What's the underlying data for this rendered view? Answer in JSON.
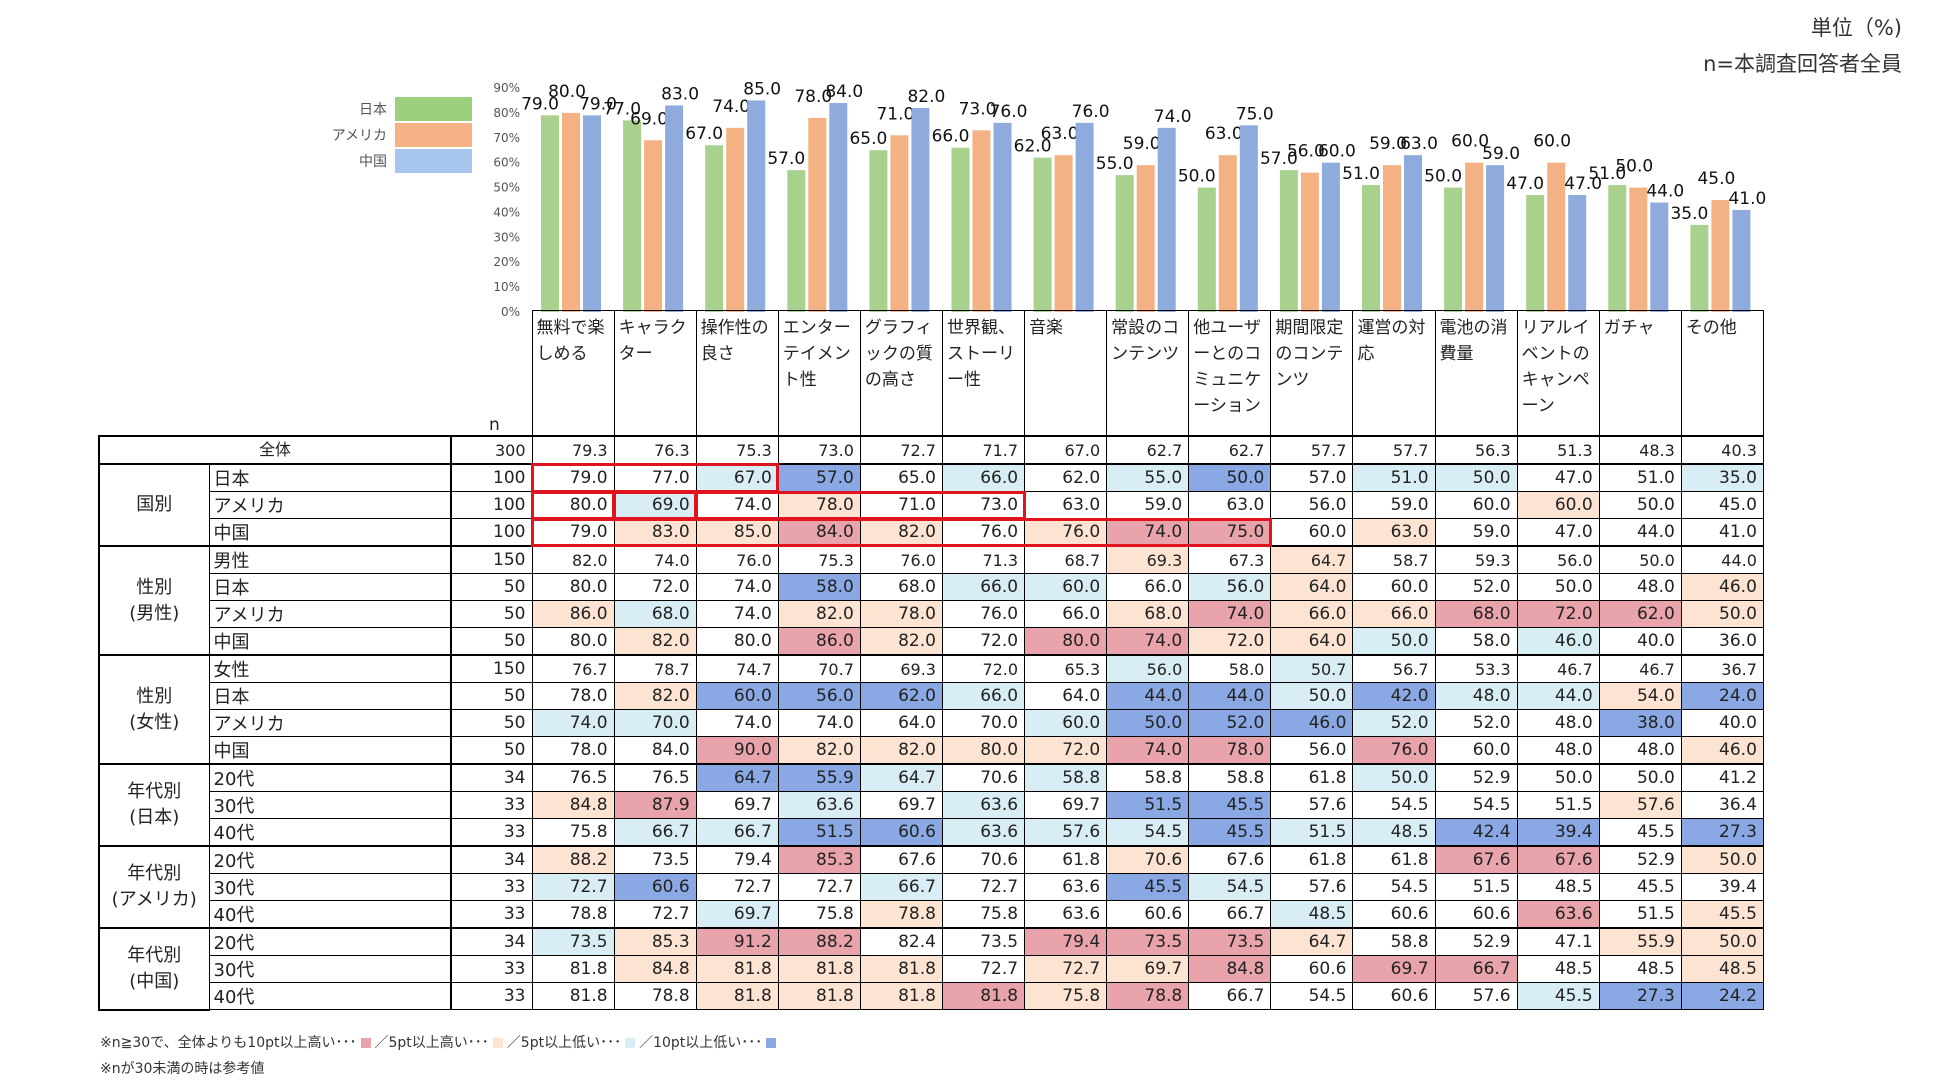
{
  "unit_label": "単位（%)",
  "n_label": "n=本調査回答者全員",
  "legend": [
    {
      "name": "日本",
      "color": "#9cd07e"
    },
    {
      "name": "アメリカ",
      "color": "#f4b183"
    },
    {
      "name": "中国",
      "color": "#8fb0e8"
    }
  ],
  "chart_data": {
    "type": "bar",
    "ylim": [
      0,
      90
    ],
    "yticks": [
      "0%",
      "10%",
      "20%",
      "30%",
      "40%",
      "50%",
      "60%",
      "70%",
      "80%",
      "90%"
    ],
    "categories": [
      "無料で楽しめる",
      "キャラクター",
      "操作性の良さ",
      "エンターテイメント性",
      "グラフィックの質の高さ",
      "世界観、ストーリー性",
      "音楽",
      "常設のコンテンツ",
      "他ユーザーとのコミュニケーション",
      "期間限定のコンテンツ",
      "運営の対応",
      "電池の消費量",
      "リアルイベントのキャンペーン",
      "ガチャ",
      "その他"
    ],
    "series": [
      {
        "name": "日本",
        "values": [
          79.0,
          77.0,
          67.0,
          57.0,
          65.0,
          66.0,
          62.0,
          55.0,
          50.0,
          57.0,
          51.0,
          50.0,
          47.0,
          51.0,
          35.0
        ]
      },
      {
        "name": "アメリカ",
        "values": [
          80.0,
          69.0,
          74.0,
          78.0,
          71.0,
          73.0,
          63.0,
          59.0,
          63.0,
          56.0,
          59.0,
          60.0,
          60.0,
          50.0,
          45.0
        ]
      },
      {
        "name": "中国",
        "values": [
          79.0,
          83.0,
          85.0,
          84.0,
          82.0,
          76.0,
          76.0,
          74.0,
          75.0,
          60.0,
          63.0,
          59.0,
          47.0,
          44.0,
          41.0
        ]
      }
    ]
  },
  "table": {
    "n_header": "n",
    "columns": [
      "無料で楽しめる",
      "キャラクター",
      "操作性の良さ",
      "エンターテイメント性",
      "グラフィックの質の高さ",
      "世界観、ストーリー性",
      "音楽",
      "常設のコンテンツ",
      "他ユーザーとのコミュニケーション",
      "期間限定のコンテンツ",
      "運営の対応",
      "電池の消費量",
      "リアルイベントのキャンペーン",
      "ガチャ",
      "その他"
    ],
    "total": {
      "label": "全体",
      "n": "300",
      "values": [
        "79.3",
        "76.3",
        "75.3",
        "73.0",
        "72.7",
        "71.7",
        "67.0",
        "62.7",
        "62.7",
        "57.7",
        "57.7",
        "56.3",
        "51.3",
        "48.3",
        "40.3"
      ]
    },
    "groups": [
      {
        "label": "国別",
        "rows": [
          {
            "label": "日本",
            "n": "100",
            "values": [
              "79.0",
              "77.0",
              "67.0",
              "57.0",
              "65.0",
              "66.0",
              "62.0",
              "55.0",
              "50.0",
              "57.0",
              "51.0",
              "50.0",
              "47.0",
              "51.0",
              "35.0"
            ],
            "colors": [
              "",
              "",
              "lb",
              "b",
              "",
              "lb",
              "",
              "lb",
              "b",
              "",
              "lb",
              "lb",
              "",
              "",
              "lb"
            ]
          },
          {
            "label": "アメリカ",
            "n": "100",
            "values": [
              "80.0",
              "69.0",
              "74.0",
              "78.0",
              "71.0",
              "73.0",
              "63.0",
              "59.0",
              "63.0",
              "56.0",
              "59.0",
              "60.0",
              "60.0",
              "50.0",
              "45.0"
            ],
            "colors": [
              "",
              "lb",
              "",
              "lp",
              "",
              "",
              "",
              "",
              "",
              "",
              "",
              "",
              "lp",
              "",
              ""
            ]
          },
          {
            "label": "中国",
            "n": "100",
            "values": [
              "79.0",
              "83.0",
              "85.0",
              "84.0",
              "82.0",
              "76.0",
              "76.0",
              "74.0",
              "75.0",
              "60.0",
              "63.0",
              "59.0",
              "47.0",
              "44.0",
              "41.0"
            ],
            "colors": [
              "",
              "lp",
              "lp",
              "p",
              "lp",
              "",
              "lp",
              "p",
              "p",
              "",
              "lp",
              "",
              "",
              "",
              ""
            ]
          }
        ]
      },
      {
        "label": "性別\n(男性)",
        "rows": [
          {
            "label": "男性",
            "n": "150",
            "values": [
              "82.0",
              "74.0",
              "76.0",
              "75.3",
              "76.0",
              "71.3",
              "68.7",
              "69.3",
              "67.3",
              "64.7",
              "58.7",
              "59.3",
              "56.0",
              "50.0",
              "44.0"
            ],
            "colors": [
              "",
              "",
              "",
              "",
              "",
              "",
              "",
              "lp",
              "",
              "lp",
              "",
              "",
              "",
              "",
              ""
            ],
            "small": true
          },
          {
            "label": "日本",
            "n": "50",
            "values": [
              "80.0",
              "72.0",
              "74.0",
              "58.0",
              "68.0",
              "66.0",
              "60.0",
              "66.0",
              "56.0",
              "64.0",
              "60.0",
              "52.0",
              "50.0",
              "48.0",
              "46.0"
            ],
            "colors": [
              "",
              "",
              "",
              "b",
              "",
              "lb",
              "lb",
              "",
              "lb",
              "lp",
              "",
              "",
              "",
              "",
              "lp"
            ]
          },
          {
            "label": "アメリカ",
            "n": "50",
            "values": [
              "86.0",
              "68.0",
              "74.0",
              "82.0",
              "78.0",
              "76.0",
              "66.0",
              "68.0",
              "74.0",
              "66.0",
              "66.0",
              "68.0",
              "72.0",
              "62.0",
              "50.0"
            ],
            "colors": [
              "lp",
              "lb",
              "",
              "lp",
              "lp",
              "",
              "",
              "lp",
              "p",
              "lp",
              "lp",
              "p",
              "p",
              "p",
              "lp"
            ]
          },
          {
            "label": "中国",
            "n": "50",
            "values": [
              "80.0",
              "82.0",
              "80.0",
              "86.0",
              "82.0",
              "72.0",
              "80.0",
              "74.0",
              "72.0",
              "64.0",
              "50.0",
              "58.0",
              "46.0",
              "40.0",
              "36.0"
            ],
            "colors": [
              "",
              "lp",
              "",
              "p",
              "lp",
              "",
              "p",
              "p",
              "lp",
              "lp",
              "lb",
              "",
              "lb",
              "",
              ""
            ]
          }
        ]
      },
      {
        "label": "性別\n(女性)",
        "rows": [
          {
            "label": "女性",
            "n": "150",
            "values": [
              "76.7",
              "78.7",
              "74.7",
              "70.7",
              "69.3",
              "72.0",
              "65.3",
              "56.0",
              "58.0",
              "50.7",
              "56.7",
              "53.3",
              "46.7",
              "46.7",
              "36.7"
            ],
            "colors": [
              "",
              "",
              "",
              "",
              "",
              "",
              "",
              "lb",
              "",
              "lb",
              "",
              "",
              "",
              "",
              ""
            ],
            "small": true
          },
          {
            "label": "日本",
            "n": "50",
            "values": [
              "78.0",
              "82.0",
              "60.0",
              "56.0",
              "62.0",
              "66.0",
              "64.0",
              "44.0",
              "44.0",
              "50.0",
              "42.0",
              "48.0",
              "44.0",
              "54.0",
              "24.0"
            ],
            "colors": [
              "",
              "lp",
              "b",
              "b",
              "b",
              "lb",
              "",
              "b",
              "b",
              "lb",
              "b",
              "lb",
              "lb",
              "lp",
              "b"
            ]
          },
          {
            "label": "アメリカ",
            "n": "50",
            "values": [
              "74.0",
              "70.0",
              "74.0",
              "74.0",
              "64.0",
              "70.0",
              "60.0",
              "50.0",
              "52.0",
              "46.0",
              "52.0",
              "52.0",
              "48.0",
              "38.0",
              "40.0"
            ],
            "colors": [
              "lb",
              "lb",
              "",
              "",
              "",
              "",
              "lb",
              "b",
              "b",
              "b",
              "lb",
              "",
              "",
              "b",
              ""
            ]
          },
          {
            "label": "中国",
            "n": "50",
            "values": [
              "78.0",
              "84.0",
              "90.0",
              "82.0",
              "82.0",
              "80.0",
              "72.0",
              "74.0",
              "78.0",
              "56.0",
              "76.0",
              "60.0",
              "48.0",
              "48.0",
              "46.0"
            ],
            "colors": [
              "",
              "",
              "p",
              "lp",
              "lp",
              "lp",
              "lp",
              "p",
              "p",
              "",
              "p",
              "",
              "",
              "",
              "lp"
            ]
          }
        ]
      },
      {
        "label": "年代別\n(日本)",
        "rows": [
          {
            "label": "20代",
            "n": "34",
            "values": [
              "76.5",
              "76.5",
              "64.7",
              "55.9",
              "64.7",
              "70.6",
              "58.8",
              "58.8",
              "58.8",
              "61.8",
              "50.0",
              "52.9",
              "50.0",
              "50.0",
              "41.2"
            ],
            "colors": [
              "",
              "",
              "b",
              "b",
              "lb",
              "",
              "lb",
              "",
              "",
              "",
              "lb",
              "",
              "",
              "",
              ""
            ]
          },
          {
            "label": "30代",
            "n": "33",
            "values": [
              "84.8",
              "87.9",
              "69.7",
              "63.6",
              "69.7",
              "63.6",
              "69.7",
              "51.5",
              "45.5",
              "57.6",
              "54.5",
              "54.5",
              "51.5",
              "57.6",
              "36.4"
            ],
            "colors": [
              "lp",
              "p",
              "",
              "lb",
              "",
              "lb",
              "",
              "b",
              "b",
              "",
              "",
              "",
              "",
              "lp",
              ""
            ]
          },
          {
            "label": "40代",
            "n": "33",
            "values": [
              "75.8",
              "66.7",
              "66.7",
              "51.5",
              "60.6",
              "63.6",
              "57.6",
              "54.5",
              "45.5",
              "51.5",
              "48.5",
              "42.4",
              "39.4",
              "45.5",
              "27.3"
            ],
            "colors": [
              "",
              "lb",
              "lb",
              "b",
              "b",
              "lb",
              "lb",
              "lb",
              "b",
              "lb",
              "lb",
              "b",
              "b",
              "",
              "b"
            ]
          }
        ]
      },
      {
        "label": "年代別\n(アメリカ)",
        "rows": [
          {
            "label": "20代",
            "n": "34",
            "values": [
              "88.2",
              "73.5",
              "79.4",
              "85.3",
              "67.6",
              "70.6",
              "61.8",
              "70.6",
              "67.6",
              "61.8",
              "61.8",
              "67.6",
              "67.6",
              "52.9",
              "50.0"
            ],
            "colors": [
              "lp",
              "",
              "",
              "p",
              "",
              "",
              "",
              "lp",
              "",
              "",
              "",
              "p",
              "p",
              "",
              "lp"
            ]
          },
          {
            "label": "30代",
            "n": "33",
            "values": [
              "72.7",
              "60.6",
              "72.7",
              "72.7",
              "66.7",
              "72.7",
              "63.6",
              "45.5",
              "54.5",
              "57.6",
              "54.5",
              "51.5",
              "48.5",
              "45.5",
              "39.4"
            ],
            "colors": [
              "lb",
              "b",
              "",
              "",
              "lb",
              "",
              "",
              "b",
              "lb",
              "",
              "",
              "",
              "",
              "",
              ""
            ]
          },
          {
            "label": "40代",
            "n": "33",
            "values": [
              "78.8",
              "72.7",
              "69.7",
              "75.8",
              "78.8",
              "75.8",
              "63.6",
              "60.6",
              "66.7",
              "48.5",
              "60.6",
              "60.6",
              "63.6",
              "51.5",
              "45.5"
            ],
            "colors": [
              "",
              "",
              "lb",
              "",
              "lp",
              "",
              "",
              "",
              "",
              "lb",
              "",
              "",
              "p",
              "",
              "lp"
            ]
          }
        ]
      },
      {
        "label": "年代別\n(中国)",
        "rows": [
          {
            "label": "20代",
            "n": "34",
            "values": [
              "73.5",
              "85.3",
              "91.2",
              "88.2",
              "82.4",
              "73.5",
              "79.4",
              "73.5",
              "73.5",
              "64.7",
              "58.8",
              "52.9",
              "47.1",
              "55.9",
              "50.0"
            ],
            "colors": [
              "lb",
              "lp",
              "p",
              "p",
              "",
              "",
              "p",
              "p",
              "p",
              "lp",
              "",
              "",
              "",
              "lp",
              "lp"
            ]
          },
          {
            "label": "30代",
            "n": "33",
            "values": [
              "81.8",
              "84.8",
              "81.8",
              "81.8",
              "81.8",
              "72.7",
              "72.7",
              "69.7",
              "84.8",
              "60.6",
              "69.7",
              "66.7",
              "48.5",
              "48.5",
              "48.5"
            ],
            "colors": [
              "",
              "lp",
              "lp",
              "lp",
              "lp",
              "",
              "lp",
              "lp",
              "p",
              "",
              "p",
              "p",
              "",
              "",
              "lp"
            ]
          },
          {
            "label": "40代",
            "n": "33",
            "values": [
              "81.8",
              "78.8",
              "81.8",
              "81.8",
              "81.8",
              "81.8",
              "75.8",
              "78.8",
              "66.7",
              "54.5",
              "60.6",
              "57.6",
              "45.5",
              "27.3",
              "24.2"
            ],
            "colors": [
              "",
              "",
              "lp",
              "lp",
              "lp",
              "p",
              "lp",
              "p",
              "",
              "",
              "",
              "",
              "lb",
              "b",
              "b"
            ]
          }
        ]
      }
    ]
  },
  "palette": {
    "p": "#e8a3ab",
    "lp": "#fce3d2",
    "lb": "#d9edf5",
    "b": "#8aa9e4"
  },
  "notes": {
    "line1_a": "※n≧30で、全体よりも10pt以上高い･･･",
    "line1_b": "／5pt以上高い･･･",
    "line1_c": "／5pt以上低い･･･",
    "line1_d": "／10pt以上低い･･･",
    "line2": "※nが30未満の時は参考値"
  }
}
